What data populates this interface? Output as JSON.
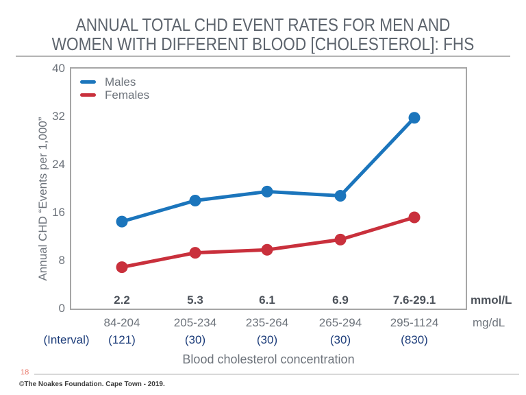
{
  "slide": {
    "title_line1": "ANNUAL TOTAL CHD EVENT RATES FOR MEN AND",
    "title_line2": "WOMEN WITH DIFFERENT BLOOD [CHOLESTEROL]: FHS",
    "page_number": "18",
    "copyright": "©The Noakes Foundation. Cape Town - 2019."
  },
  "chart_data": {
    "type": "line",
    "title": "Annual total CHD event rates for men and women with different blood [cholesterol]: FHS",
    "xlabel": "Blood cholesterol concentration",
    "ylabel": "Annual CHD “Events per 1,000”",
    "ylim": [
      0,
      40
    ],
    "yticks": [
      0,
      8,
      16,
      24,
      32,
      40
    ],
    "grid": false,
    "legend_position": "top-left",
    "categories_mmol": [
      "2.2",
      "5.3",
      "6.1",
      "6.9",
      "7.6-29.1"
    ],
    "categories_mgdl": [
      "84-204",
      "205-234",
      "235-264",
      "265-294",
      "295-1124"
    ],
    "interval_counts": [
      "(121)",
      "(30)",
      "(30)",
      "(30)",
      "(830)"
    ],
    "interval_caption": "(Interval)",
    "unit_mmol": "mmol/L",
    "unit_mgdl": "mg/dL",
    "series": [
      {
        "name": "Males",
        "color": "#1b75bc",
        "values": [
          14.5,
          18.0,
          19.5,
          18.8,
          31.8
        ]
      },
      {
        "name": "Females",
        "color": "#c9303c",
        "values": [
          6.9,
          9.3,
          9.8,
          11.5,
          15.2
        ]
      }
    ]
  }
}
